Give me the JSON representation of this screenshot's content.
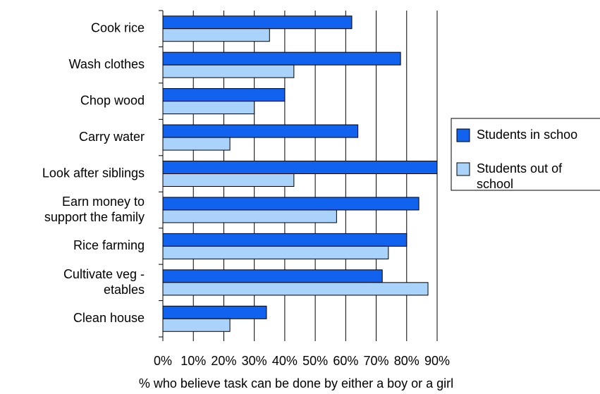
{
  "chart_data": {
    "type": "bar",
    "orientation": "horizontal",
    "x_label": "% who believe task can be done by either a boy or a girl",
    "categories": [
      "Cook rice",
      "Wash clothes",
      "Chop wood",
      "Carry water",
      "Look after siblings",
      "Earn money to\nsupport the family",
      "Rice farming",
      "Cultivate veg -\netables",
      "Clean house"
    ],
    "series": [
      {
        "name": "Students in schoo",
        "color": "#1262f0",
        "values": [
          62,
          78,
          40,
          64,
          90,
          84,
          80,
          72,
          34
        ]
      },
      {
        "name": "Students out of\nschool",
        "color": "#a9d3fa",
        "values": [
          35,
          43,
          30,
          22,
          43,
          57,
          74,
          87,
          22
        ]
      }
    ],
    "xlim": [
      0,
      90
    ],
    "xticks": [
      {
        "value": 0,
        "label": "0%"
      },
      {
        "value": 10,
        "label": "10%"
      },
      {
        "value": 20,
        "label": "20%"
      },
      {
        "value": 30,
        "label": "30%"
      },
      {
        "value": 40,
        "label": "40%"
      },
      {
        "value": 50,
        "label": "50%"
      },
      {
        "value": 60,
        "label": "60%"
      },
      {
        "value": 70,
        "label": "70%"
      },
      {
        "value": 80,
        "label": "80%"
      },
      {
        "value": 90,
        "label": "90%"
      }
    ],
    "grid": true,
    "legend": "right"
  }
}
